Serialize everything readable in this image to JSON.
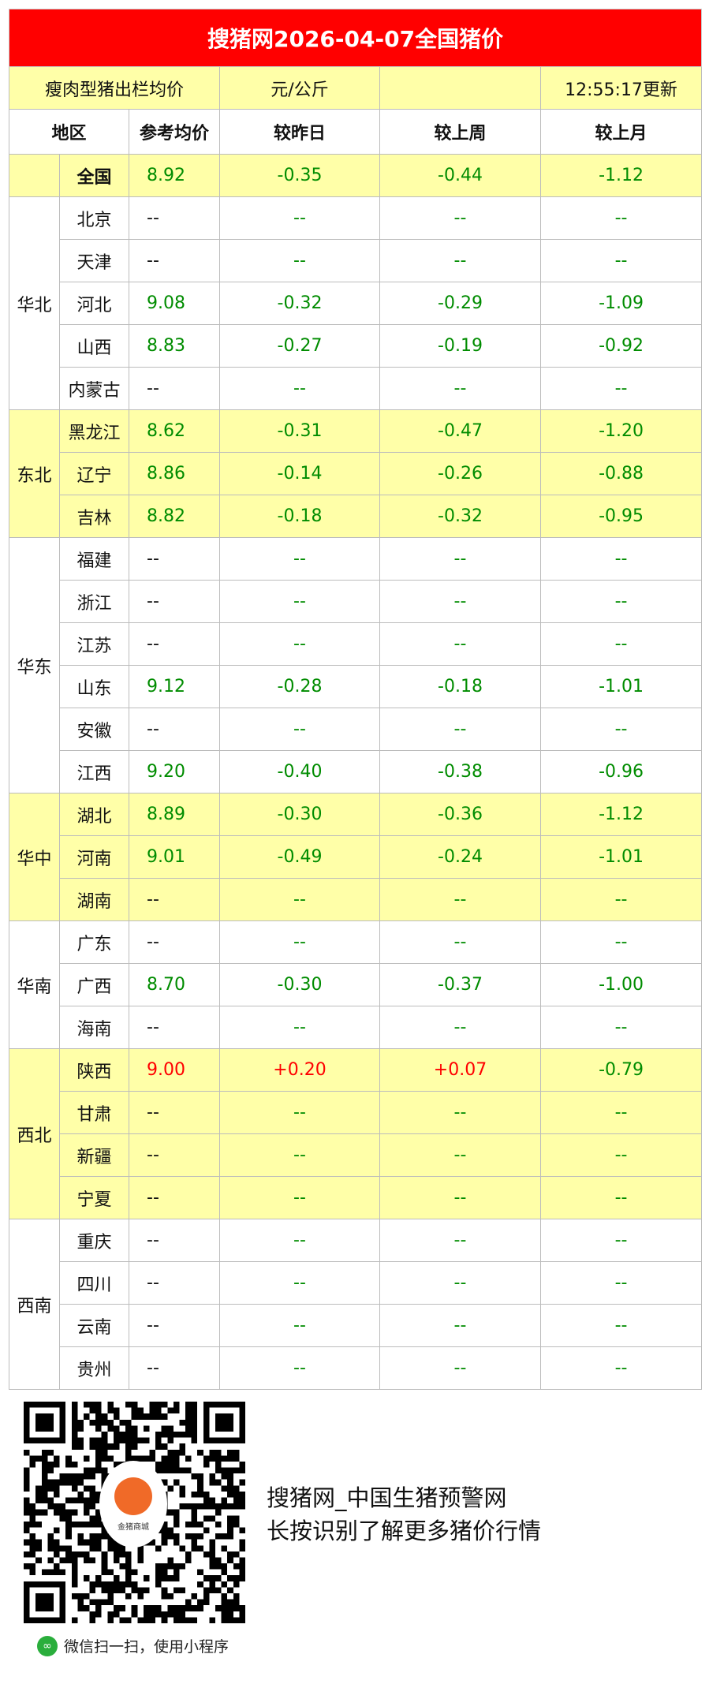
{
  "title": "搜猪网2026-04-07全国猪价",
  "subheader": {
    "label": "瘦肉型猪出栏均价",
    "unit": "元/公斤",
    "blank": "",
    "updated": "12:55:17更新"
  },
  "columns": [
    "地区",
    "参考均价",
    "较昨日",
    "较上周",
    "较上月"
  ],
  "national": {
    "name": "全国",
    "price": "8.92",
    "day": "-0.35",
    "week": "-0.44",
    "month": "-1.12"
  },
  "colors": {
    "title_bg": "#ff0000",
    "highlight_bg": "#ffffa8",
    "down": "#008c00",
    "up": "#ff0000"
  },
  "regions": [
    {
      "name": "华北",
      "rows": [
        {
          "p": "北京",
          "price": "--",
          "day": "--",
          "week": "--",
          "month": "--"
        },
        {
          "p": "天津",
          "price": "--",
          "day": "--",
          "week": "--",
          "month": "--"
        },
        {
          "p": "河北",
          "price": "9.08",
          "day": "-0.32",
          "week": "-0.29",
          "month": "-1.09"
        },
        {
          "p": "山西",
          "price": "8.83",
          "day": "-0.27",
          "week": "-0.19",
          "month": "-0.92"
        },
        {
          "p": "内蒙古",
          "price": "--",
          "day": "--",
          "week": "--",
          "month": "--"
        }
      ]
    },
    {
      "name": "东北",
      "rows": [
        {
          "p": "黑龙江",
          "price": "8.62",
          "day": "-0.31",
          "week": "-0.47",
          "month": "-1.20"
        },
        {
          "p": "辽宁",
          "price": "8.86",
          "day": "-0.14",
          "week": "-0.26",
          "month": "-0.88"
        },
        {
          "p": "吉林",
          "price": "8.82",
          "day": "-0.18",
          "week": "-0.32",
          "month": "-0.95"
        }
      ]
    },
    {
      "name": "华东",
      "rows": [
        {
          "p": "福建",
          "price": "--",
          "day": "--",
          "week": "--",
          "month": "--"
        },
        {
          "p": "浙江",
          "price": "--",
          "day": "--",
          "week": "--",
          "month": "--"
        },
        {
          "p": "江苏",
          "price": "--",
          "day": "--",
          "week": "--",
          "month": "--"
        },
        {
          "p": "山东",
          "price": "9.12",
          "day": "-0.28",
          "week": "-0.18",
          "month": "-1.01"
        },
        {
          "p": "安徽",
          "price": "--",
          "day": "--",
          "week": "--",
          "month": "--"
        },
        {
          "p": "江西",
          "price": "9.20",
          "day": "-0.40",
          "week": "-0.38",
          "month": "-0.96"
        }
      ]
    },
    {
      "name": "华中",
      "rows": [
        {
          "p": "湖北",
          "price": "8.89",
          "day": "-0.30",
          "week": "-0.36",
          "month": "-1.12"
        },
        {
          "p": "河南",
          "price": "9.01",
          "day": "-0.49",
          "week": "-0.24",
          "month": "-1.01"
        },
        {
          "p": "湖南",
          "price": "--",
          "day": "--",
          "week": "--",
          "month": "--"
        }
      ]
    },
    {
      "name": "华南",
      "rows": [
        {
          "p": "广东",
          "price": "--",
          "day": "--",
          "week": "--",
          "month": "--"
        },
        {
          "p": "广西",
          "price": "8.70",
          "day": "-0.30",
          "week": "-0.37",
          "month": "-1.00"
        },
        {
          "p": "海南",
          "price": "--",
          "day": "--",
          "week": "--",
          "month": "--"
        }
      ]
    },
    {
      "name": "西北",
      "rows": [
        {
          "p": "陕西",
          "price": "9.00",
          "day": "+0.20",
          "week": "+0.07",
          "month": "-0.79"
        },
        {
          "p": "甘肃",
          "price": "--",
          "day": "--",
          "week": "--",
          "month": "--"
        },
        {
          "p": "新疆",
          "price": "--",
          "day": "--",
          "week": "--",
          "month": "--"
        },
        {
          "p": "宁夏",
          "price": "--",
          "day": "--",
          "week": "--",
          "month": "--"
        }
      ]
    },
    {
      "name": "西南",
      "rows": [
        {
          "p": "重庆",
          "price": "--",
          "day": "--",
          "week": "--",
          "month": "--"
        },
        {
          "p": "四川",
          "price": "--",
          "day": "--",
          "week": "--",
          "month": "--"
        },
        {
          "p": "云南",
          "price": "--",
          "day": "--",
          "week": "--",
          "month": "--"
        },
        {
          "p": "贵州",
          "price": "--",
          "day": "--",
          "week": "--",
          "month": "--"
        }
      ]
    }
  ],
  "footer": {
    "qr_logo_text": "金猪商城",
    "line1": "搜猪网_中国生猪预警网",
    "line2": "长按识别了解更多猪价行情",
    "mini_program": "微信扫一扫，使用小程序",
    "wechat_icon": "wechat-mini-program-icon"
  }
}
